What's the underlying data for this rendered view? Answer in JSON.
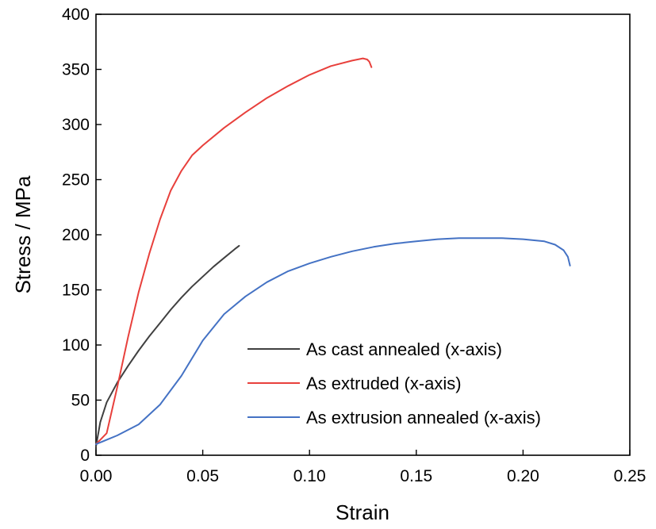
{
  "chart_data": {
    "type": "line",
    "xlabel": "Strain",
    "ylabel": "Stress / MPa",
    "xlim": [
      0,
      0.25
    ],
    "ylim": [
      0,
      400
    ],
    "xticks": [
      "0.00",
      "0.05",
      "0.10",
      "0.15",
      "0.20",
      "0.25"
    ],
    "yticks": [
      "0",
      "50",
      "100",
      "150",
      "200",
      "250",
      "300",
      "350",
      "400"
    ],
    "grid": false,
    "legend_position": "bottom-right",
    "series": [
      {
        "name": "As cast annealed (x-axis)",
        "color": "#404040",
        "x": [
          0.0,
          0.002,
          0.005,
          0.01,
          0.015,
          0.02,
          0.025,
          0.03,
          0.035,
          0.04,
          0.045,
          0.05,
          0.055,
          0.06,
          0.065,
          0.067
        ],
        "y": [
          8,
          30,
          48,
          66,
          81,
          95,
          108,
          120,
          132,
          143,
          153,
          162,
          171,
          179,
          187,
          190
        ]
      },
      {
        "name": "As extruded (x-axis)",
        "color": "#e8403c",
        "x": [
          0.0,
          0.005,
          0.01,
          0.015,
          0.02,
          0.025,
          0.03,
          0.035,
          0.04,
          0.045,
          0.05,
          0.06,
          0.07,
          0.08,
          0.09,
          0.1,
          0.11,
          0.12,
          0.125,
          0.127,
          0.128,
          0.129
        ],
        "y": [
          10,
          20,
          62,
          107,
          148,
          183,
          214,
          240,
          258,
          272,
          281,
          297,
          311,
          324,
          335,
          345,
          353,
          358,
          360,
          359,
          357,
          352
        ]
      },
      {
        "name": "As extrusion annealed (x-axis)",
        "color": "#4472c4",
        "x": [
          0.0,
          0.01,
          0.02,
          0.03,
          0.04,
          0.05,
          0.06,
          0.07,
          0.08,
          0.09,
          0.1,
          0.11,
          0.12,
          0.13,
          0.14,
          0.15,
          0.16,
          0.17,
          0.18,
          0.19,
          0.2,
          0.21,
          0.215,
          0.219,
          0.221,
          0.222
        ],
        "y": [
          10,
          18,
          28,
          46,
          72,
          104,
          128,
          144,
          157,
          167,
          174,
          180,
          185,
          189,
          192,
          194,
          196,
          197,
          197,
          197,
          196,
          194,
          191,
          186,
          180,
          172
        ]
      }
    ]
  }
}
